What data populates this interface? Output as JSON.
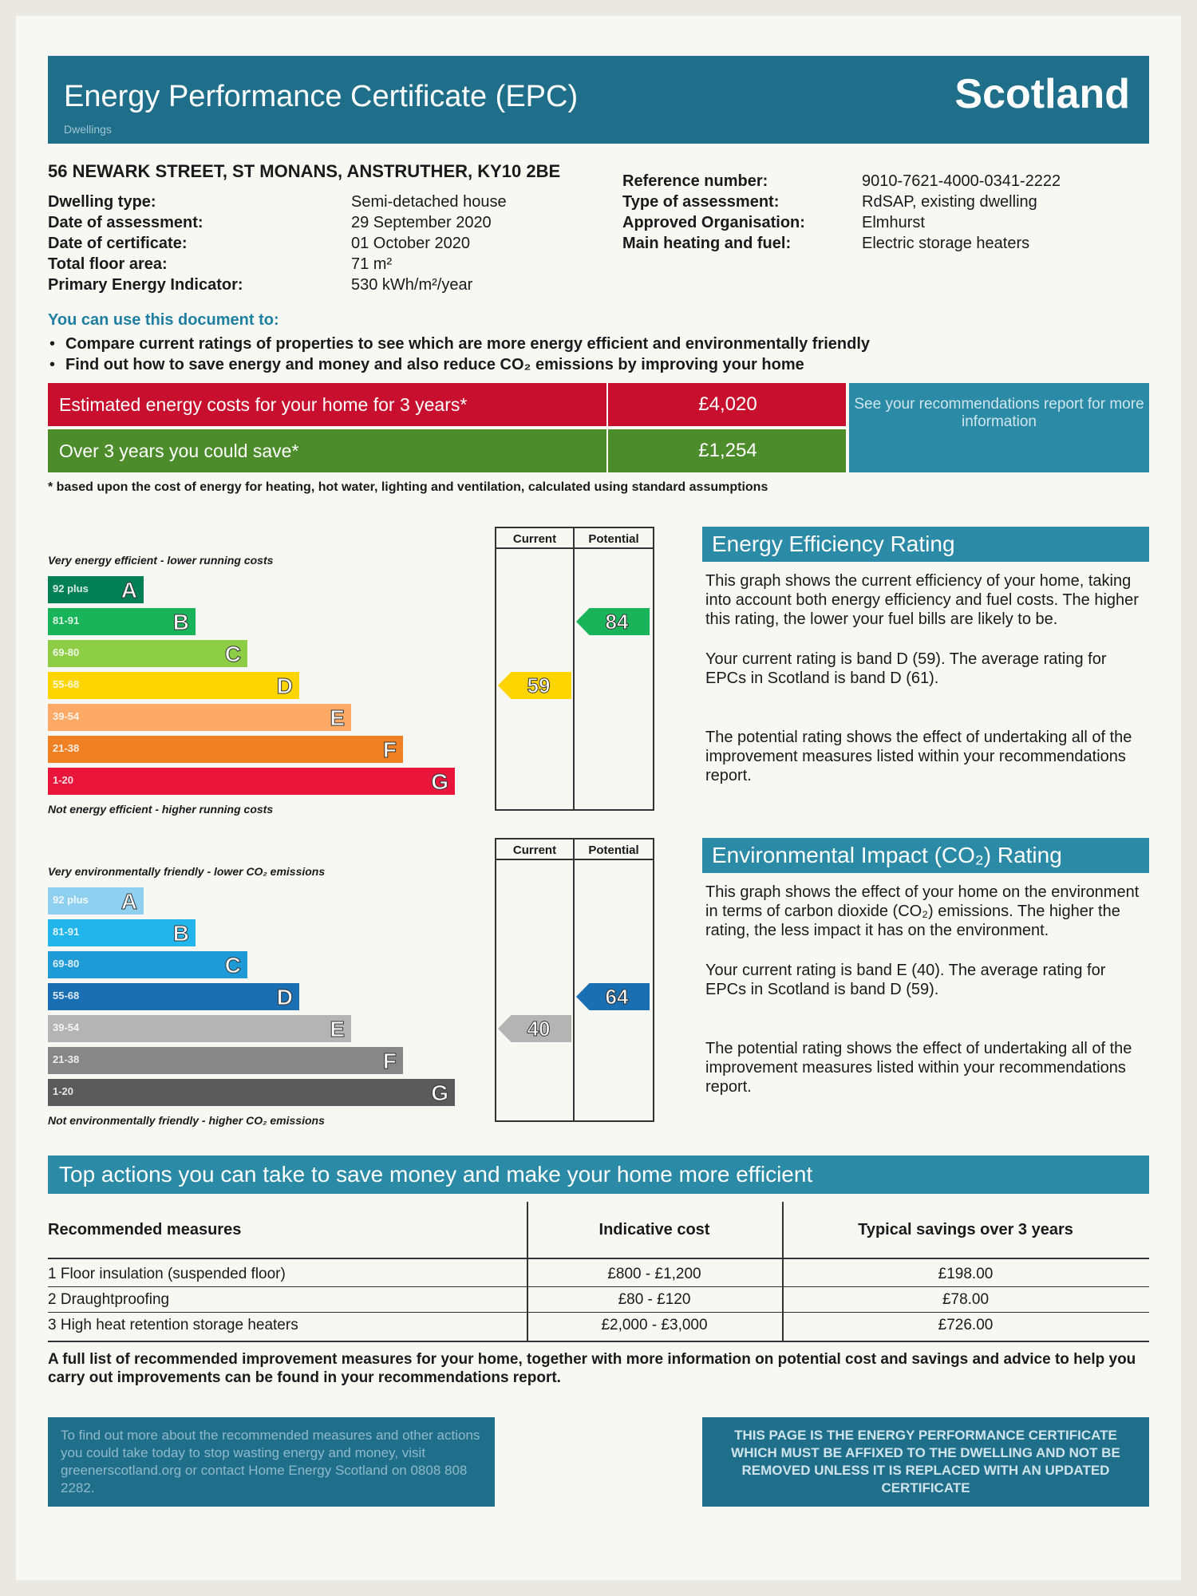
{
  "header": {
    "title": "Energy Performance Certificate (EPC)",
    "region": "Scotland",
    "subtitle": "Dwellings"
  },
  "address": "56 NEWARK STREET, ST MONANS, ANSTRUTHER, KY10 2BE",
  "details_left": [
    {
      "label": "Dwelling type:",
      "value": "Semi-detached house"
    },
    {
      "label": "Date of assessment:",
      "value": "29 September 2020"
    },
    {
      "label": "Date of certificate:",
      "value": "01 October 2020"
    },
    {
      "label": "Total floor area:",
      "value": "71 m²"
    },
    {
      "label": "Primary Energy Indicator:",
      "value": "530 kWh/m²/year"
    }
  ],
  "details_right": [
    {
      "label": "Reference number:",
      "value": "9010-7621-4000-0341-2222"
    },
    {
      "label": "Type of assessment:",
      "value": "RdSAP, existing dwelling"
    },
    {
      "label": "Approved Organisation:",
      "value": "Elmhurst"
    },
    {
      "label": "Main heating and fuel:",
      "value": "Electric storage heaters"
    }
  ],
  "uses": {
    "heading": "You can use this document to:",
    "items": [
      "Compare current ratings of properties to see which are more energy efficient and environmentally friendly",
      "Find out how to save energy and money and also reduce CO₂ emissions by improving your home"
    ]
  },
  "costs": {
    "rows": [
      {
        "label": "Estimated energy costs for your home for 3 years*",
        "value": "£4,020"
      },
      {
        "label": "Over 3 years you could save*",
        "value": "£1,254"
      }
    ],
    "note": "See your recommendations report for more information",
    "footnote": "* based upon the cost of energy for heating, hot water, lighting and ventilation, calculated using standard assumptions"
  },
  "efficiency": {
    "top_label": "Very energy efficient - lower running costs",
    "bottom_label": "Not energy efficient - higher running costs",
    "current_header": "Current",
    "potential_header": "Potential",
    "current": 59,
    "potential": 84,
    "bands": [
      {
        "range": "92 plus",
        "letter": "A",
        "color": "#008054"
      },
      {
        "range": "81-91",
        "letter": "B",
        "color": "#19b459"
      },
      {
        "range": "69-80",
        "letter": "C",
        "color": "#8dce46"
      },
      {
        "range": "55-68",
        "letter": "D",
        "color": "#ffd500"
      },
      {
        "range": "39-54",
        "letter": "E",
        "color": "#fcaa65"
      },
      {
        "range": "21-38",
        "letter": "F",
        "color": "#ef8023"
      },
      {
        "range": "1-20",
        "letter": "G",
        "color": "#e9153b"
      }
    ],
    "heading": "Energy Efficiency Rating",
    "paragraphs": [
      "This graph shows the current efficiency of your home, taking into account both energy efficiency and fuel costs. The higher this rating, the lower your fuel bills are likely to be.",
      "Your current rating is band D (59). The average rating for EPCs in Scotland is band D (61).",
      "The potential rating shows the effect of undertaking all of the improvement measures listed within your recommendations report."
    ]
  },
  "environment": {
    "top_label": "Very environmentally friendly - lower CO₂ emissions",
    "bottom_label": "Not environmentally friendly - higher CO₂ emissions",
    "current_header": "Current",
    "potential_header": "Potential",
    "current": 40,
    "potential": 64,
    "bands": [
      {
        "range": "92 plus",
        "letter": "A",
        "color": "#8fd0f0"
      },
      {
        "range": "81-91",
        "letter": "B",
        "color": "#22b5eb"
      },
      {
        "range": "69-80",
        "letter": "C",
        "color": "#1e9bd7"
      },
      {
        "range": "55-68",
        "letter": "D",
        "color": "#1a6fb3"
      },
      {
        "range": "39-54",
        "letter": "E",
        "color": "#b4b4b4"
      },
      {
        "range": "21-38",
        "letter": "F",
        "color": "#878787"
      },
      {
        "range": "1-20",
        "letter": "G",
        "color": "#5a5a5a"
      }
    ],
    "heading": "Environmental Impact (CO₂) Rating",
    "paragraphs": [
      "This graph shows the effect of your home on the environment in terms of carbon dioxide (CO₂) emissions. The higher the rating, the less impact it has on the environment.",
      "Your current rating is band E (40). The average rating for EPCs in Scotland is band D (59).",
      "The potential rating shows the effect of undertaking all of the improvement measures listed within your recommendations report."
    ]
  },
  "actions": {
    "heading": "Top actions you can take to save money and make your home more efficient",
    "table": {
      "headers": [
        "Recommended measures",
        "Indicative cost",
        "Typical savings over 3 years"
      ],
      "rows": [
        [
          "1 Floor insulation (suspended floor)",
          "£800 - £1,200",
          "£198.00"
        ],
        [
          "2 Draughtproofing",
          "£80 - £120",
          "£78.00"
        ],
        [
          "3 High heat retention storage heaters",
          "£2,000 - £3,000",
          "£726.00"
        ]
      ]
    },
    "note": "A full list of recommended improvement measures for your home, together with more information on potential cost and savings and advice to help you carry out improvements can be found in your recommendations report."
  },
  "footer": {
    "left": "To find out more about the recommended measures and other actions you could take today to stop wasting energy and money, visit greenerscotland.org or contact Home Energy Scotland on 0808 808 2282.",
    "right": "THIS PAGE IS THE ENERGY PERFORMANCE CERTIFICATE WHICH MUST BE AFFIXED TO THE DWELLING AND NOT BE REMOVED UNLESS IT IS REPLACED WITH AN UPDATED CERTIFICATE"
  }
}
